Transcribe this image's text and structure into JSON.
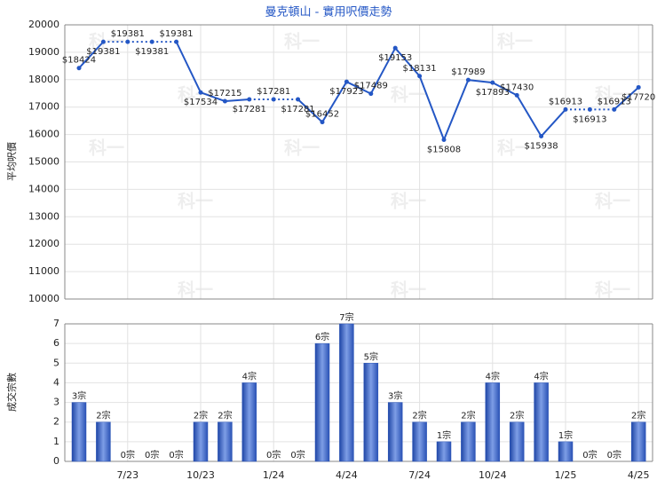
{
  "chart_data": [
    {
      "type": "line",
      "title": "曼克頓山 - 實用呎價走勢",
      "ylabel": "平均呎價",
      "color": "#2457c5",
      "watermark": "科一",
      "values": [
        18424,
        19381,
        19381,
        19381,
        19381,
        17534,
        17215,
        17281,
        17281,
        17281,
        16452,
        17923,
        17489,
        19153,
        18131,
        15808,
        17989,
        17893,
        17430,
        15938,
        16913,
        16913,
        16913,
        17720
      ],
      "value_labels": [
        "$18424",
        "$19381",
        "$19381",
        "$19381",
        "$19381",
        "$17534",
        "$17215",
        "$17281",
        "$17281",
        "$17281",
        "$16452",
        "$17923",
        "$17489",
        "$19153",
        "$18131",
        "$15808",
        "$17989",
        "$17893",
        "$17430",
        "$15938",
        "$16913",
        "$16913",
        "$16913",
        "$17720"
      ],
      "ylim": [
        10000,
        20000
      ],
      "yticks": [
        10000,
        11000,
        12000,
        13000,
        14000,
        15000,
        16000,
        17000,
        18000,
        19000,
        20000
      ],
      "grid": true
    },
    {
      "type": "bar",
      "ylabel": "成交宗數",
      "color": "#2a55b8",
      "categories": [
        null,
        null,
        "7/23",
        null,
        null,
        "10/23",
        null,
        null,
        "1/24",
        null,
        null,
        "4/24",
        null,
        null,
        "7/24",
        null,
        null,
        "10/24",
        null,
        null,
        "1/25",
        null,
        null,
        "4/25"
      ],
      "values": [
        3,
        2,
        0,
        0,
        0,
        2,
        2,
        4,
        0,
        0,
        6,
        7,
        5,
        3,
        2,
        1,
        2,
        4,
        2,
        4,
        1,
        0,
        0,
        2
      ],
      "value_labels": [
        "3宗",
        "2宗",
        "0宗",
        "0宗",
        "0宗",
        "2宗",
        "2宗",
        "4宗",
        "0宗",
        "0宗",
        "6宗",
        "7宗",
        "5宗",
        "3宗",
        "2宗",
        "1宗",
        "2宗",
        "4宗",
        "2宗",
        "4宗",
        "1宗",
        "0宗",
        "0宗",
        "2宗"
      ],
      "ylim": [
        0,
        7
      ],
      "yticks": [
        0,
        1,
        2,
        3,
        4,
        5,
        6,
        7
      ],
      "grid": true
    }
  ]
}
